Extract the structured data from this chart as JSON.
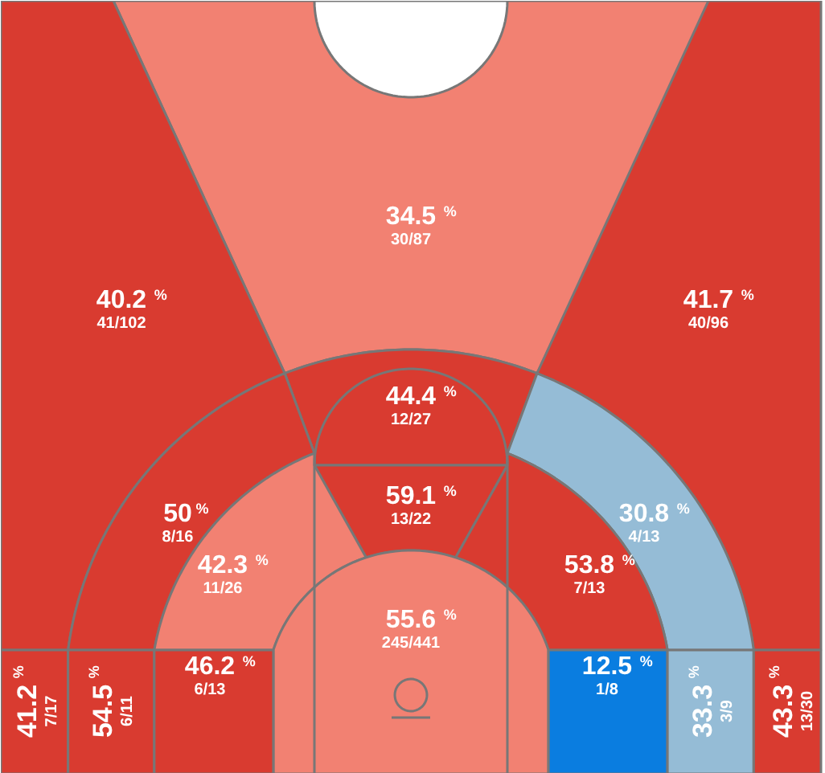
{
  "chart_data": {
    "type": "other",
    "categories": [
      "30/87",
      "41/102",
      "40/96",
      "12/27",
      "8/16",
      "13/22",
      "4/13",
      "11/26",
      "7/13",
      "245/441",
      "7/17",
      "6/11",
      "6/13",
      "1/8",
      "3/9",
      "13/30"
    ],
    "values": [
      34.5,
      40.2,
      41.7,
      44.4,
      50,
      59.1,
      30.8,
      42.3,
      53.8,
      55.6,
      41.2,
      54.5,
      46.2,
      12.5,
      33.3,
      43.3
    ],
    "ylabel": "%",
    "data_labels": true,
    "colors": [
      "#f28172",
      "#d93b30",
      "#d93b30",
      "#d93b30",
      "#d93b30",
      "#d93b30",
      "#95bcd6",
      "#f28172",
      "#d93b30",
      "#f28172",
      "#d93b30",
      "#d93b30",
      "#d93b30",
      "#0a7de0",
      "#95bcd6",
      "#d93b30"
    ]
  }
}
